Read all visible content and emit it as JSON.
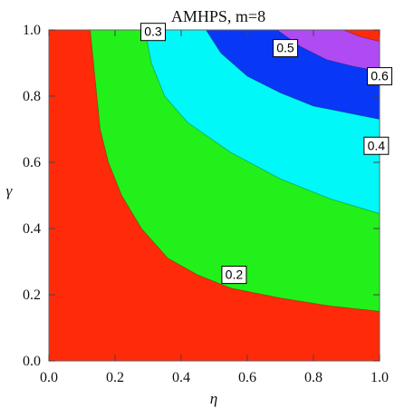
{
  "chart_data": {
    "type": "contour",
    "title": "AMHPS, m=8",
    "xlabel": "η",
    "ylabel": "γ",
    "xlim": [
      0.0,
      1.0
    ],
    "ylim": [
      0.0,
      1.0
    ],
    "xticks": [
      "0.0",
      "0.2",
      "0.4",
      "0.6",
      "0.8",
      "1.0"
    ],
    "yticks": [
      "0.0",
      "0.2",
      "0.4",
      "0.6",
      "0.8",
      "1.0"
    ],
    "grid": false,
    "levels": [
      0.2,
      0.3,
      0.4,
      0.5,
      0.6
    ],
    "regions": [
      {
        "range": "< 0.2",
        "color": "#ff2a0a"
      },
      {
        "range": "0.2 - 0.3",
        "color": "#22f01a"
      },
      {
        "range": "0.3 - 0.4",
        "color": "#00f8f8"
      },
      {
        "range": "0.4 - 0.5",
        "color": "#0838f5"
      },
      {
        "range": "0.5 - 0.6",
        "color": "#b04af2"
      },
      {
        "range": "> 0.6",
        "color": "#ff2a0a"
      }
    ],
    "contours": [
      {
        "level": "0.2",
        "points": [
          [
            0.125,
            1.0
          ],
          [
            0.135,
            0.9
          ],
          [
            0.145,
            0.8
          ],
          [
            0.155,
            0.7
          ],
          [
            0.18,
            0.6
          ],
          [
            0.22,
            0.5
          ],
          [
            0.28,
            0.4
          ],
          [
            0.36,
            0.31
          ],
          [
            0.45,
            0.26
          ],
          [
            0.55,
            0.22
          ],
          [
            0.7,
            0.19
          ],
          [
            0.85,
            0.166
          ],
          [
            1.0,
            0.15
          ]
        ]
      },
      {
        "level": "0.3",
        "points": [
          [
            0.29,
            1.0
          ],
          [
            0.31,
            0.9
          ],
          [
            0.35,
            0.8
          ],
          [
            0.42,
            0.72
          ],
          [
            0.55,
            0.63
          ],
          [
            0.7,
            0.55
          ],
          [
            0.85,
            0.49
          ],
          [
            1.0,
            0.445
          ]
        ]
      },
      {
        "level": "0.4",
        "points": [
          [
            0.475,
            1.0
          ],
          [
            0.52,
            0.93
          ],
          [
            0.6,
            0.86
          ],
          [
            0.7,
            0.81
          ],
          [
            0.8,
            0.77
          ],
          [
            0.9,
            0.75
          ],
          [
            1.0,
            0.73
          ]
        ]
      },
      {
        "level": "0.5",
        "points": [
          [
            0.69,
            1.0
          ],
          [
            0.76,
            0.95
          ],
          [
            0.84,
            0.91
          ],
          [
            0.92,
            0.89
          ],
          [
            1.0,
            0.875
          ]
        ]
      },
      {
        "level": "0.6",
        "points": [
          [
            0.89,
            1.0
          ],
          [
            0.94,
            0.98
          ],
          [
            1.0,
            0.965
          ]
        ]
      }
    ],
    "contour_labels": [
      {
        "text": "0.2",
        "x": 0.56,
        "y": 0.26
      },
      {
        "text": "0.3",
        "x": 0.315,
        "y": 0.994
      },
      {
        "text": "0.4",
        "x": 0.99,
        "y": 0.65
      },
      {
        "text": "0.5",
        "x": 0.715,
        "y": 0.945
      },
      {
        "text": "0.6",
        "x": 1.0,
        "y": 0.86
      }
    ]
  }
}
